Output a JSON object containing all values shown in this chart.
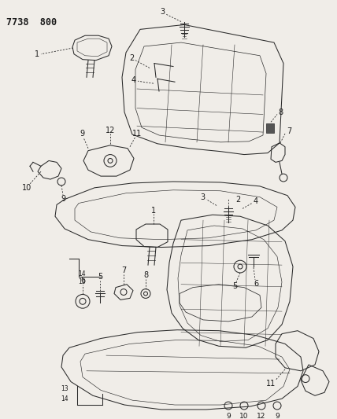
{
  "title": "7738  800",
  "bg_color": "#f0ede8",
  "line_color": "#2a2a2a",
  "text_color": "#1a1a1a",
  "figsize": [
    4.28,
    5.33
  ],
  "dpi": 100,
  "title_fontsize": 8.5
}
